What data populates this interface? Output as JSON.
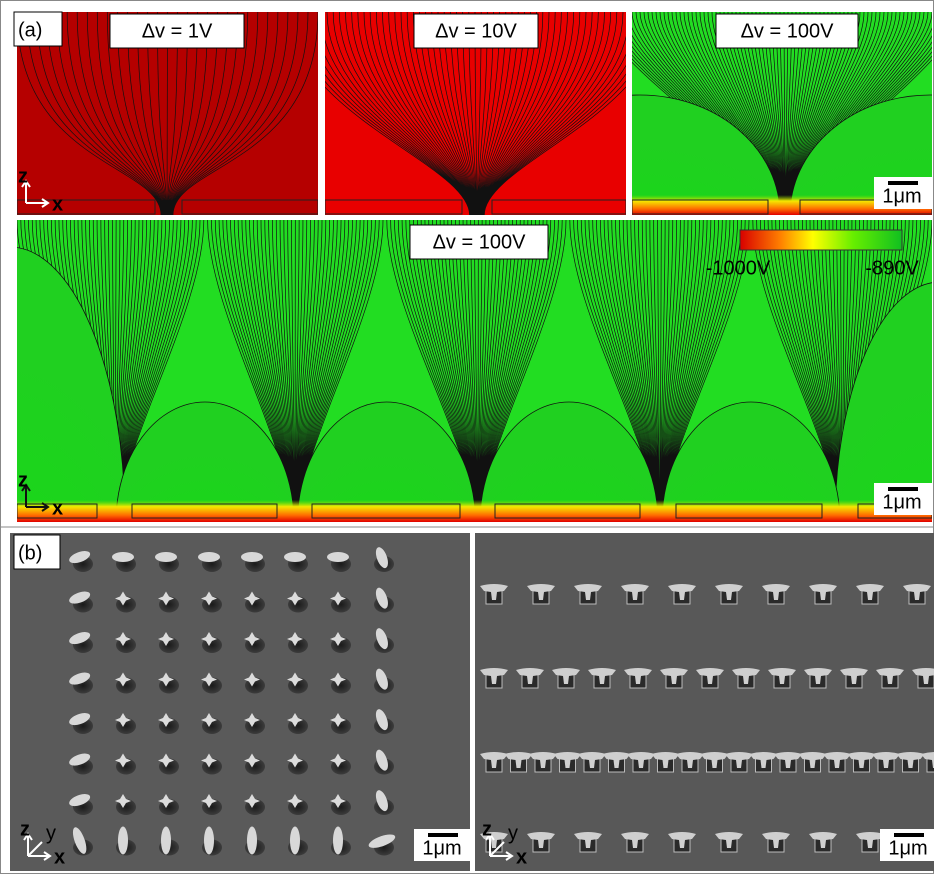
{
  "panel_a": {
    "label": "(a)",
    "top_row": [
      {
        "label": "Δv = 1V"
      },
      {
        "label": "Δv = 10V"
      },
      {
        "label": "Δv = 100V",
        "scale_bar": "1μm"
      }
    ],
    "wide": {
      "label": "Δv = 100V",
      "scale_bar": "1μm",
      "colorbar": {
        "min_label": "-1000V",
        "max_label": "-890V"
      }
    }
  },
  "panel_b": {
    "label": "(b)",
    "scale_bar_left": "1μm",
    "scale_bar_right": "1μm"
  },
  "axis_labels": {
    "z": "z",
    "x": "x",
    "y": "y"
  }
}
